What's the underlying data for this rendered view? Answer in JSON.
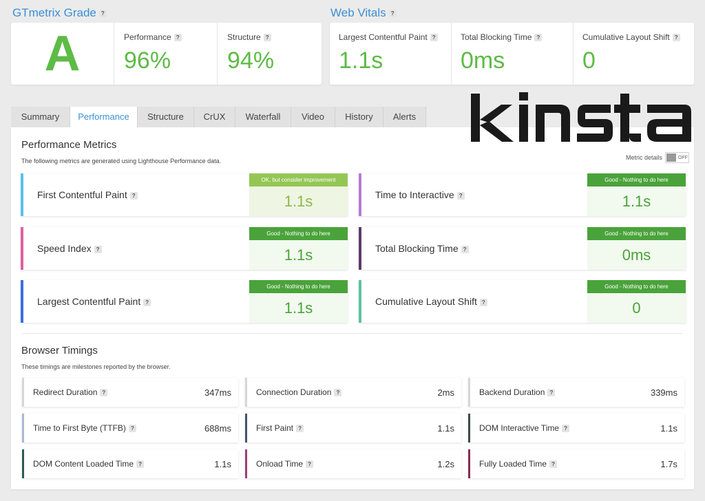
{
  "grade": {
    "title": "GTmetrix Grade",
    "letter": "A",
    "performance_label": "Performance",
    "performance_value": "96%",
    "structure_label": "Structure",
    "structure_value": "94%"
  },
  "vitals": {
    "title": "Web Vitals",
    "items": [
      {
        "label": "Largest Contentful Paint",
        "value": "1.1s"
      },
      {
        "label": "Total Blocking Time",
        "value": "0ms"
      },
      {
        "label": "Cumulative Layout Shift",
        "value": "0"
      }
    ]
  },
  "tabs": [
    "Summary",
    "Performance",
    "Structure",
    "CrUX",
    "Waterfall",
    "Video",
    "History",
    "Alerts"
  ],
  "active_tab": "Performance",
  "logo_text": "kinsta",
  "performance_metrics": {
    "title": "Performance Metrics",
    "subtitle": "The following metrics are generated using Lighthouse Performance data.",
    "toggle_label": "Metric details",
    "toggle_state": "OFF",
    "items": [
      {
        "name": "First Contentful Paint",
        "status": "OK, but consider improvement",
        "value": "1.1s",
        "color": "#5bc0eb"
      },
      {
        "name": "Time to Interactive",
        "status": "Good - Nothing to do here",
        "value": "1.1s",
        "color": "#b57cd6"
      },
      {
        "name": "Speed Index",
        "status": "Good - Nothing to do here",
        "value": "1.1s",
        "color": "#e0609f"
      },
      {
        "name": "Total Blocking Time",
        "status": "Good - Nothing to do here",
        "value": "0ms",
        "color": "#5e3a6b"
      },
      {
        "name": "Largest Contentful Paint",
        "status": "Good - Nothing to do here",
        "value": "1.1s",
        "color": "#3a6fdc"
      },
      {
        "name": "Cumulative Layout Shift",
        "status": "Good - Nothing to do here",
        "value": "0",
        "color": "#5ec2a1"
      }
    ]
  },
  "browser_timings": {
    "title": "Browser Timings",
    "subtitle": "These timings are milestones reported by the browser.",
    "items": [
      {
        "name": "Redirect Duration",
        "value": "347ms",
        "color": "#d6d6d6"
      },
      {
        "name": "Connection Duration",
        "value": "2ms",
        "color": "#d6d6d6"
      },
      {
        "name": "Backend Duration",
        "value": "339ms",
        "color": "#d6d6d6"
      },
      {
        "name": "Time to First Byte (TTFB)",
        "value": "688ms",
        "color": "#a9b8d6"
      },
      {
        "name": "First Paint",
        "value": "1.1s",
        "color": "#44546e"
      },
      {
        "name": "DOM Interactive Time",
        "value": "1.1s",
        "color": "#3b4a4a"
      },
      {
        "name": "DOM Content Loaded Time",
        "value": "1.1s",
        "color": "#2e5a52"
      },
      {
        "name": "Onload Time",
        "value": "1.2s",
        "color": "#9b3f73"
      },
      {
        "name": "Fully Loaded Time",
        "value": "1.7s",
        "color": "#8b2a4f"
      }
    ]
  },
  "help_icon": "?"
}
